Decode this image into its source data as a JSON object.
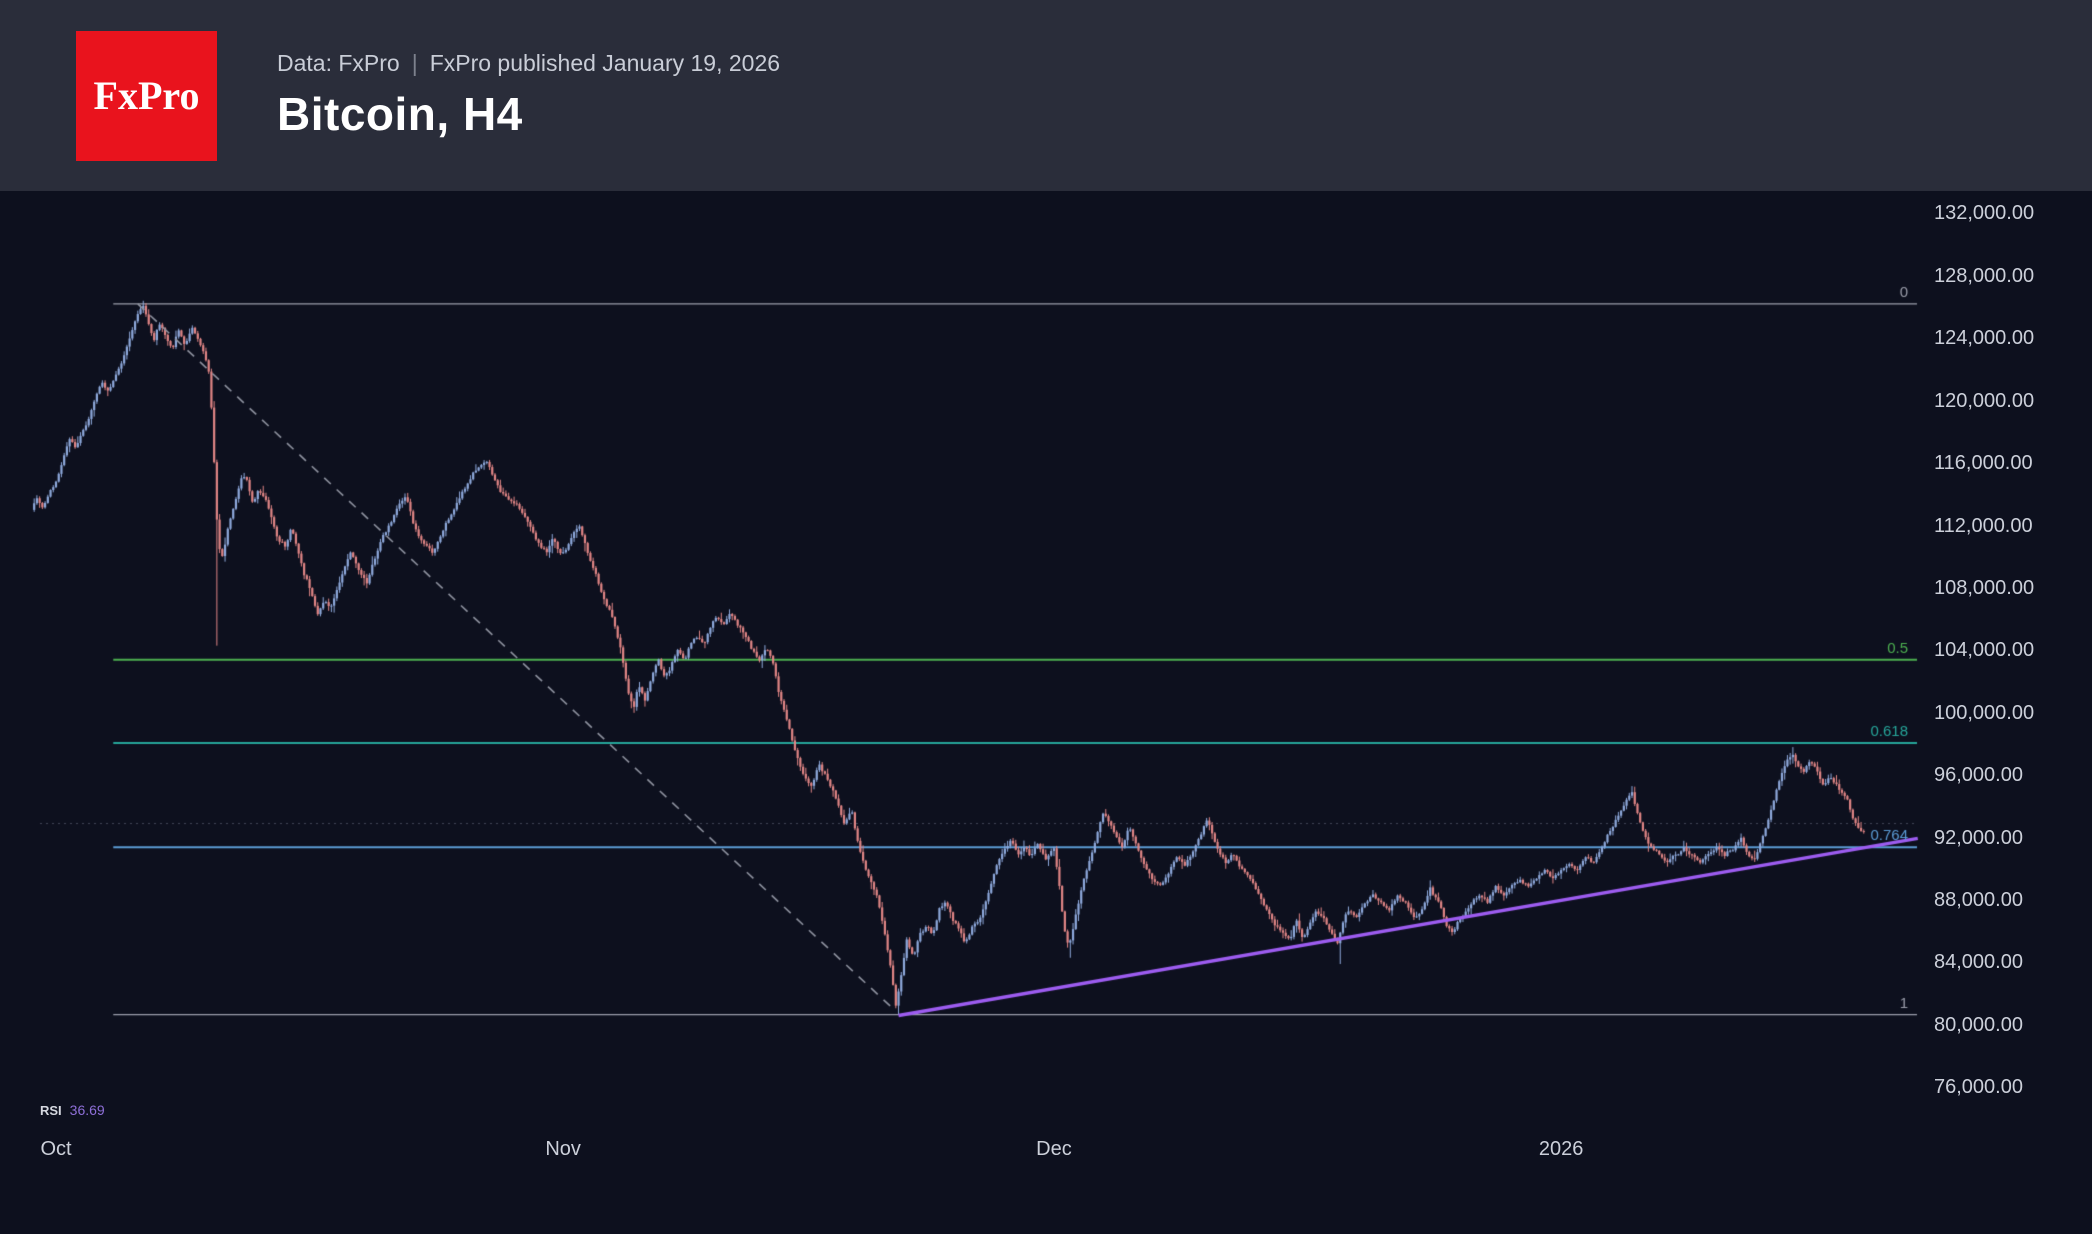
{
  "header": {
    "logo_text": "FxPro",
    "meta_left": "Data: FxPro",
    "meta_separator": "|",
    "meta_right": "FxPro published January 19, 2026",
    "title": "Bitcoin, H4"
  },
  "chart_data": {
    "type": "candlestick",
    "title": "Bitcoin, H4",
    "symbol": "Bitcoin",
    "timeframe": "H4",
    "grid": false,
    "ylim": [
      76000,
      132000
    ],
    "x_axis": [
      {
        "label": "Oct",
        "day": 0
      },
      {
        "label": "Nov",
        "day": 31
      },
      {
        "label": "Dec",
        "day": 61
      },
      {
        "label": "2026",
        "day": 92
      }
    ],
    "y_axis": [
      {
        "value": 132000,
        "label": "132,000.00"
      },
      {
        "value": 128000,
        "label": "128,000.00"
      },
      {
        "value": 124000,
        "label": "124,000.00"
      },
      {
        "value": 120000,
        "label": "120,000.00"
      },
      {
        "value": 116000,
        "label": "116,000.00"
      },
      {
        "value": 112000,
        "label": "112,000.00"
      },
      {
        "value": 108000,
        "label": "108,000.00"
      },
      {
        "value": 104000,
        "label": "104,000.00"
      },
      {
        "value": 100000,
        "label": "100,000.00"
      },
      {
        "value": 96000,
        "label": "96,000.00"
      },
      {
        "value": 92000,
        "label": "92,000.00"
      },
      {
        "value": 88000,
        "label": "88,000.00"
      },
      {
        "value": 84000,
        "label": "84,000.00"
      },
      {
        "value": 80000,
        "label": "80,000.00"
      },
      {
        "value": 76000,
        "label": "76,000.00"
      }
    ],
    "fib_start_day": 3.5,
    "fib_levels": [
      {
        "label": "0",
        "price": 126200,
        "color": "#9b9eab",
        "width": 1.2
      },
      {
        "label": "0.5",
        "price": 103400,
        "color": "#4caf50",
        "width": 2
      },
      {
        "label": "0.618",
        "price": 98070,
        "color": "#26a69a",
        "width": 2
      },
      {
        "label": "0.764",
        "price": 91380,
        "color": "#5b9bd5",
        "width": 2
      },
      {
        "label": "1",
        "price": 80650,
        "color": "#9b9eab",
        "width": 1.2
      }
    ],
    "dotted_price_line": {
      "price": 92900,
      "color": "#43485a"
    },
    "trendlines": [
      {
        "name": "downtrend-dashed",
        "from_day": 5.0,
        "from_price": 126200,
        "to_day": 51.1,
        "to_price": 81100,
        "color": "#8f93a0",
        "width": 1.6,
        "dash": [
          9,
          8
        ]
      },
      {
        "name": "uptrend-support",
        "from_day": 51.5,
        "from_price": 80600,
        "to_day": 113.8,
        "to_price": 91950,
        "color": "#9d5cf0",
        "width": 3.4,
        "dash": []
      }
    ],
    "candles_per_day": 6,
    "day_range": [
      -1.5,
      110.6
    ],
    "wick_events": [
      {
        "day": 5.4,
        "high": 126250
      },
      {
        "day": 9.75,
        "low": 104300
      },
      {
        "day": 51.35,
        "low": 80650
      },
      {
        "day": 61.95,
        "low": 84300
      },
      {
        "day": 78.35,
        "low": 83900
      },
      {
        "day": 96.3,
        "high": 95300
      },
      {
        "day": 106.1,
        "high": 97800
      }
    ],
    "price_path": [
      [
        -1.5,
        113000
      ],
      [
        -1.2,
        113800
      ],
      [
        -0.8,
        113100
      ],
      [
        -0.4,
        114200
      ],
      [
        0,
        114700
      ],
      [
        0.4,
        116200
      ],
      [
        0.8,
        117500
      ],
      [
        1.2,
        117000
      ],
      [
        1.6,
        118000
      ],
      [
        2,
        118800
      ],
      [
        2.4,
        120200
      ],
      [
        2.8,
        121200
      ],
      [
        3.2,
        120500
      ],
      [
        3.6,
        121500
      ],
      [
        4,
        122400
      ],
      [
        4.4,
        123700
      ],
      [
        4.8,
        124900
      ],
      [
        5.1,
        125800
      ],
      [
        5.4,
        126000
      ],
      [
        5.7,
        124700
      ],
      [
        6,
        123900
      ],
      [
        6.3,
        125000
      ],
      [
        6.7,
        124200
      ],
      [
        7.1,
        123300
      ],
      [
        7.5,
        124500
      ],
      [
        7.9,
        123500
      ],
      [
        8.3,
        124700
      ],
      [
        8.7,
        123900
      ],
      [
        9.1,
        122900
      ],
      [
        9.4,
        121500
      ],
      [
        9.7,
        115500
      ],
      [
        9.9,
        110800
      ],
      [
        10.2,
        109900
      ],
      [
        10.5,
        111900
      ],
      [
        10.9,
        113300
      ],
      [
        11.3,
        114900
      ],
      [
        11.6,
        115200
      ],
      [
        12,
        113400
      ],
      [
        12.4,
        114300
      ],
      [
        12.8,
        113800
      ],
      [
        13.2,
        112400
      ],
      [
        13.6,
        111000
      ],
      [
        14,
        110700
      ],
      [
        14.4,
        111900
      ],
      [
        14.8,
        110300
      ],
      [
        15.2,
        108800
      ],
      [
        15.6,
        107700
      ],
      [
        16,
        106300
      ],
      [
        16.4,
        107200
      ],
      [
        16.8,
        106700
      ],
      [
        17.2,
        107900
      ],
      [
        17.6,
        109200
      ],
      [
        18,
        110300
      ],
      [
        18.5,
        109200
      ],
      [
        19,
        108300
      ],
      [
        19.5,
        109900
      ],
      [
        20,
        111400
      ],
      [
        20.5,
        112300
      ],
      [
        21,
        113400
      ],
      [
        21.4,
        113900
      ],
      [
        21.8,
        112300
      ],
      [
        22.2,
        111200
      ],
      [
        22.6,
        110700
      ],
      [
        23,
        110200
      ],
      [
        23.5,
        111300
      ],
      [
        24,
        112400
      ],
      [
        24.5,
        113400
      ],
      [
        25,
        114400
      ],
      [
        25.5,
        115400
      ],
      [
        26,
        115900
      ],
      [
        26.3,
        116200
      ],
      [
        26.7,
        115200
      ],
      [
        27.1,
        114300
      ],
      [
        27.5,
        113900
      ],
      [
        28,
        113400
      ],
      [
        28.5,
        112900
      ],
      [
        29,
        111900
      ],
      [
        29.5,
        110900
      ],
      [
        30,
        110300
      ],
      [
        30.4,
        111200
      ],
      [
        30.8,
        110200
      ],
      [
        31.2,
        110500
      ],
      [
        31.6,
        111400
      ],
      [
        32,
        111900
      ],
      [
        32.5,
        110200
      ],
      [
        33,
        108800
      ],
      [
        33.5,
        107200
      ],
      [
        34,
        106200
      ],
      [
        34.5,
        104200
      ],
      [
        35,
        101200
      ],
      [
        35.3,
        100200
      ],
      [
        35.6,
        101900
      ],
      [
        36,
        100800
      ],
      [
        36.4,
        102300
      ],
      [
        36.8,
        103400
      ],
      [
        37.2,
        102300
      ],
      [
        37.6,
        103000
      ],
      [
        38,
        104100
      ],
      [
        38.4,
        103400
      ],
      [
        38.8,
        104500
      ],
      [
        39.2,
        104900
      ],
      [
        39.6,
        104400
      ],
      [
        40,
        105500
      ],
      [
        40.4,
        106200
      ],
      [
        40.8,
        105600
      ],
      [
        41.2,
        106400
      ],
      [
        41.6,
        105800
      ],
      [
        42,
        105200
      ],
      [
        42.5,
        104200
      ],
      [
        43,
        103300
      ],
      [
        43.4,
        104200
      ],
      [
        43.8,
        103300
      ],
      [
        44.2,
        101200
      ],
      [
        44.6,
        99800
      ],
      [
        45,
        98200
      ],
      [
        45.4,
        96800
      ],
      [
        45.8,
        95800
      ],
      [
        46.2,
        95200
      ],
      [
        46.6,
        96700
      ],
      [
        47,
        96100
      ],
      [
        47.4,
        95200
      ],
      [
        47.8,
        94200
      ],
      [
        48.2,
        92800
      ],
      [
        48.6,
        93900
      ],
      [
        49,
        91800
      ],
      [
        49.4,
        90200
      ],
      [
        49.8,
        89200
      ],
      [
        50.2,
        88200
      ],
      [
        50.6,
        86200
      ],
      [
        51,
        83800
      ],
      [
        51.35,
        81200
      ],
      [
        51.7,
        83400
      ],
      [
        52,
        85400
      ],
      [
        52.4,
        84300
      ],
      [
        52.8,
        85900
      ],
      [
        53.2,
        86300
      ],
      [
        53.6,
        85800
      ],
      [
        54,
        87400
      ],
      [
        54.4,
        87900
      ],
      [
        54.8,
        86800
      ],
      [
        55.2,
        86200
      ],
      [
        55.6,
        85200
      ],
      [
        56,
        86300
      ],
      [
        56.5,
        86900
      ],
      [
        57,
        88400
      ],
      [
        57.5,
        90300
      ],
      [
        58,
        91300
      ],
      [
        58.4,
        91900
      ],
      [
        58.8,
        90800
      ],
      [
        59.2,
        91400
      ],
      [
        59.6,
        90800
      ],
      [
        60,
        91700
      ],
      [
        60.5,
        90600
      ],
      [
        61,
        91300
      ],
      [
        61.3,
        89200
      ],
      [
        61.6,
        86300
      ],
      [
        61.9,
        84900
      ],
      [
        62.2,
        86300
      ],
      [
        62.6,
        88400
      ],
      [
        63,
        89900
      ],
      [
        63.4,
        91300
      ],
      [
        63.8,
        92900
      ],
      [
        64.1,
        93700
      ],
      [
        64.4,
        92900
      ],
      [
        64.8,
        92100
      ],
      [
        65.2,
        91400
      ],
      [
        65.6,
        92700
      ],
      [
        66,
        91600
      ],
      [
        66.5,
        90300
      ],
      [
        67,
        89400
      ],
      [
        67.5,
        88900
      ],
      [
        68,
        89800
      ],
      [
        68.5,
        90800
      ],
      [
        69,
        90200
      ],
      [
        69.5,
        91100
      ],
      [
        70,
        92300
      ],
      [
        70.3,
        93200
      ],
      [
        70.6,
        92400
      ],
      [
        71,
        91300
      ],
      [
        71.5,
        90400
      ],
      [
        72,
        90900
      ],
      [
        72.5,
        89900
      ],
      [
        73,
        89400
      ],
      [
        73.5,
        88400
      ],
      [
        74,
        87400
      ],
      [
        74.5,
        86400
      ],
      [
        75,
        85900
      ],
      [
        75.4,
        85400
      ],
      [
        75.8,
        86800
      ],
      [
        76.2,
        85600
      ],
      [
        76.6,
        86400
      ],
      [
        77,
        87300
      ],
      [
        77.5,
        86800
      ],
      [
        78,
        85900
      ],
      [
        78.3,
        85100
      ],
      [
        78.7,
        86700
      ],
      [
        79,
        87300
      ],
      [
        79.5,
        86900
      ],
      [
        80,
        87800
      ],
      [
        80.5,
        88300
      ],
      [
        81,
        87800
      ],
      [
        81.5,
        87300
      ],
      [
        82,
        88300
      ],
      [
        82.5,
        87800
      ],
      [
        83,
        86900
      ],
      [
        83.5,
        87400
      ],
      [
        84,
        88700
      ],
      [
        84.5,
        87900
      ],
      [
        85,
        86400
      ],
      [
        85.4,
        85900
      ],
      [
        85.8,
        86800
      ],
      [
        86.2,
        87300
      ],
      [
        86.6,
        87900
      ],
      [
        87,
        88300
      ],
      [
        87.5,
        87900
      ],
      [
        88,
        88800
      ],
      [
        88.5,
        88300
      ],
      [
        89,
        88900
      ],
      [
        89.5,
        89300
      ],
      [
        90,
        88900
      ],
      [
        90.5,
        89400
      ],
      [
        91,
        89900
      ],
      [
        91.5,
        89400
      ],
      [
        92,
        89900
      ],
      [
        92.5,
        90300
      ],
      [
        93,
        89900
      ],
      [
        93.5,
        90800
      ],
      [
        94,
        90400
      ],
      [
        94.5,
        91400
      ],
      [
        95,
        92400
      ],
      [
        95.5,
        93400
      ],
      [
        96,
        94400
      ],
      [
        96.3,
        94900
      ],
      [
        96.6,
        93800
      ],
      [
        97,
        92400
      ],
      [
        97.5,
        91400
      ],
      [
        98,
        90900
      ],
      [
        98.5,
        90400
      ],
      [
        99,
        90900
      ],
      [
        99.5,
        91300
      ],
      [
        100,
        90900
      ],
      [
        100.5,
        90400
      ],
      [
        101,
        90900
      ],
      [
        101.5,
        91400
      ],
      [
        102,
        90900
      ],
      [
        102.5,
        91300
      ],
      [
        103,
        91900
      ],
      [
        103.4,
        90900
      ],
      [
        103.8,
        90500
      ],
      [
        104.2,
        91700
      ],
      [
        104.6,
        92900
      ],
      [
        105,
        94400
      ],
      [
        105.4,
        95900
      ],
      [
        105.8,
        96900
      ],
      [
        106.1,
        97400
      ],
      [
        106.4,
        96700
      ],
      [
        106.8,
        96200
      ],
      [
        107.2,
        96900
      ],
      [
        107.6,
        96400
      ],
      [
        108,
        95400
      ],
      [
        108.4,
        95900
      ],
      [
        108.8,
        95400
      ],
      [
        109.2,
        94900
      ],
      [
        109.5,
        94400
      ],
      [
        109.8,
        93300
      ],
      [
        110.1,
        92700
      ],
      [
        110.4,
        92300
      ],
      [
        110.6,
        92400
      ]
    ],
    "colors": {
      "background": "#0d101e",
      "up": "#8ea9dc",
      "down": "#e08585",
      "axis_text": "#ccd0da"
    },
    "rsi": {
      "label": "RSI",
      "value": "36.69"
    }
  }
}
